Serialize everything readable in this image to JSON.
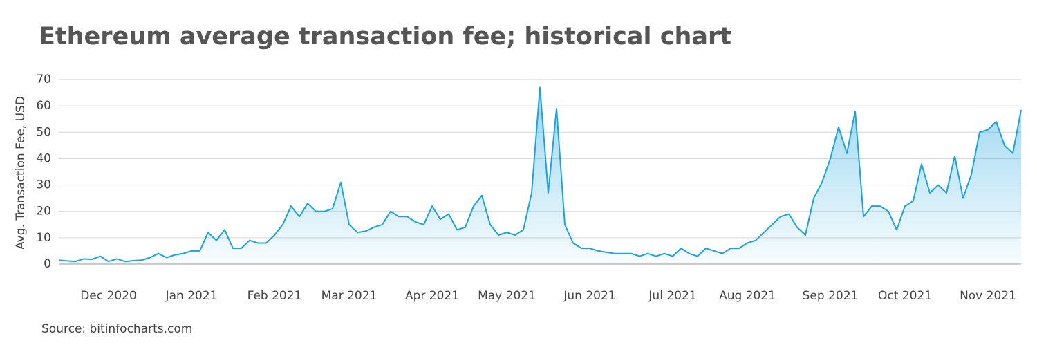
{
  "chart_data": {
    "type": "line",
    "title": "Ethereum average transaction fee; historical chart",
    "y_label": "Avg. Transaction Fee, USD",
    "source": "Source: bitinfocharts.com",
    "categories": [
      null,
      null,
      null,
      null,
      null,
      null,
      "Dec 2020",
      null,
      null,
      null,
      null,
      null,
      null,
      null,
      null,
      null,
      "Jan 2021",
      null,
      null,
      null,
      null,
      null,
      null,
      null,
      null,
      null,
      "Feb 2021",
      null,
      null,
      null,
      null,
      null,
      null,
      null,
      null,
      "Mar 2021",
      null,
      null,
      null,
      null,
      null,
      null,
      null,
      null,
      null,
      "Apr 2021",
      null,
      null,
      null,
      null,
      null,
      null,
      null,
      null,
      "May 2021",
      null,
      null,
      null,
      null,
      null,
      null,
      null,
      null,
      null,
      "Jun 2021",
      null,
      null,
      null,
      null,
      null,
      null,
      null,
      null,
      null,
      "Jul 2021",
      null,
      null,
      null,
      null,
      null,
      null,
      null,
      null,
      "Aug 2021",
      null,
      null,
      null,
      null,
      null,
      null,
      null,
      null,
      null,
      "Sep 2021",
      null,
      null,
      null,
      null,
      null,
      null,
      null,
      null,
      "Oct 2021",
      null,
      null,
      null,
      null,
      null,
      null,
      null,
      null,
      null,
      "Nov 2021",
      null,
      null,
      null,
      null
    ],
    "values": [
      1.5,
      1.2,
      1,
      2,
      1.8,
      3,
      1,
      2,
      1,
      1.3,
      1.5,
      2.5,
      4,
      2.5,
      3.5,
      4,
      5,
      5,
      12,
      9,
      13,
      6,
      6,
      9,
      8,
      8,
      11,
      15,
      22,
      18,
      23,
      20,
      20,
      21,
      31,
      15,
      12,
      12.5,
      14,
      15,
      20,
      18,
      18,
      16,
      15,
      22,
      17,
      19,
      13,
      14,
      22,
      26,
      15,
      11,
      12,
      11,
      13,
      27,
      67,
      27,
      59,
      15,
      8,
      6,
      6,
      5,
      4.5,
      4,
      4,
      4,
      3,
      4,
      3,
      4,
      3,
      6,
      4,
      3,
      6,
      5,
      4,
      6,
      6,
      8,
      9,
      12,
      15,
      18,
      19,
      14,
      11,
      25,
      31,
      40,
      52,
      42,
      58,
      18,
      22,
      22,
      20,
      13,
      22,
      24,
      38,
      27,
      30,
      27,
      41,
      25,
      34,
      50,
      51,
      54,
      45,
      42,
      58.5
    ],
    "color": "#1aa3df",
    "ylim": [
      0,
      70
    ],
    "yticks": [
      0,
      10,
      20,
      30,
      40,
      50,
      60,
      70
    ],
    "grid": true
  }
}
